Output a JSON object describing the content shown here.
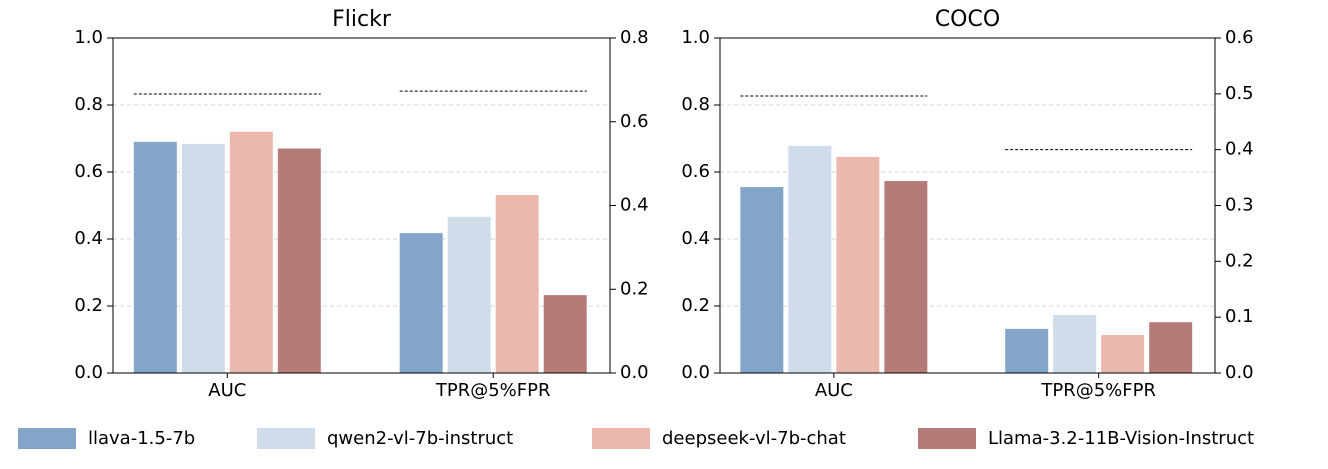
{
  "legend": [
    {
      "name": "llava-1.5-7b",
      "color": "#84a5ca"
    },
    {
      "name": "qwen2-vl-7b-instruct",
      "color": "#cfdcea"
    },
    {
      "name": "deepseek-vl-7b-chat",
      "color": "#ecb8ae"
    },
    {
      "name": "Llama-3.2-11B-Vision-Instruct",
      "color": "#b57b78"
    }
  ],
  "chart_data": [
    {
      "type": "bar",
      "title": "Flickr",
      "categories": [
        "AUC",
        "TPR@5%FPR"
      ],
      "category_axis": [
        "y",
        "y2"
      ],
      "series": [
        {
          "values": [
            0.69,
            0.334
          ]
        },
        {
          "values": [
            0.684,
            0.373
          ]
        },
        {
          "values": [
            0.72,
            0.425
          ]
        },
        {
          "values": [
            0.67,
            0.186
          ]
        }
      ],
      "reference": [
        0.833,
        0.673
      ],
      "ylim": [
        0,
        1.0
      ],
      "yticks": [
        {
          "value": 0,
          "label": "0.0"
        },
        0.2,
        0.4,
        0.6,
        0.8,
        {
          "value": 1,
          "label": "1.0"
        }
      ],
      "y2lim": [
        0,
        0.8
      ],
      "y2ticks": [
        {
          "value": 0,
          "label": "0.0"
        },
        0.2,
        0.4,
        0.6,
        0.8
      ],
      "grid": true
    },
    {
      "type": "bar",
      "title": "COCO",
      "categories": [
        "AUC",
        "TPR@5%FPR"
      ],
      "category_axis": [
        "y",
        "y2"
      ],
      "series": [
        {
          "values": [
            0.555,
            0.079
          ]
        },
        {
          "values": [
            0.678,
            0.104
          ]
        },
        {
          "values": [
            0.645,
            0.068
          ]
        },
        {
          "values": [
            0.573,
            0.091
          ]
        }
      ],
      "reference": [
        0.827,
        0.4
      ],
      "ylim": [
        0,
        1.0
      ],
      "yticks": [
        {
          "value": 0,
          "label": "0.0"
        },
        0.2,
        0.4,
        0.6,
        0.8,
        {
          "value": 1,
          "label": "1.0"
        }
      ],
      "y2lim": [
        0,
        0.6
      ],
      "y2ticks": [
        {
          "value": 0,
          "label": "0.0"
        },
        0.1,
        0.2,
        0.3,
        0.4,
        0.5,
        0.6
      ],
      "grid": true
    }
  ]
}
